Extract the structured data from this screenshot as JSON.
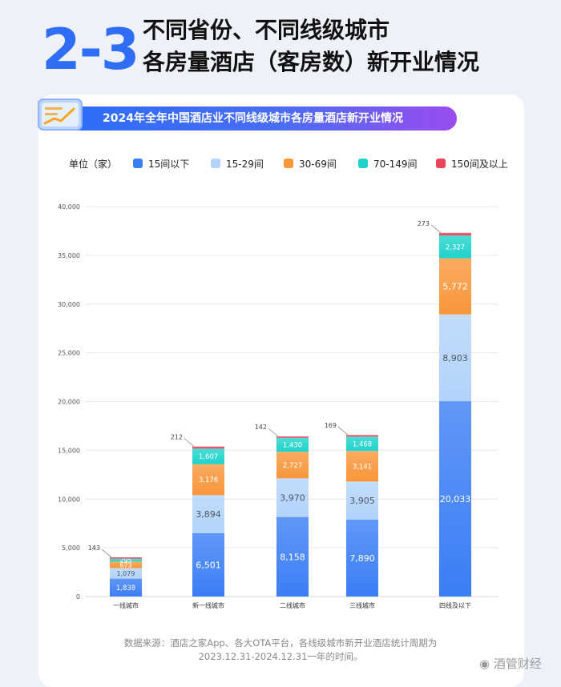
{
  "header": {
    "number": "2-3",
    "title_line1": "不同省份、不同线级城市",
    "title_line2": "各房量酒店（客房数）新开业情况"
  },
  "banner_title": "2024年全年中国酒店业不同线级城市各房量酒店新开业情况",
  "legend_unit": "单位（家）",
  "chart_data": {
    "type": "bar",
    "stacked": true,
    "title": "2024年全年中国酒店业不同线级城市各房量酒店新开业情况",
    "ylabel": "单位（家）",
    "categories": [
      "一线城市",
      "新一线城市",
      "二线城市",
      "三线城市",
      "四线及以下"
    ],
    "ylim": [
      0,
      40000
    ],
    "yticks": [
      0,
      5000,
      10000,
      15000,
      20000,
      25000,
      30000,
      35000,
      40000
    ],
    "ytick_labels": [
      "0",
      "5,000",
      "10,000",
      "15,000",
      "20,000",
      "25,000",
      "30,000",
      "35,000",
      "40,000"
    ],
    "grid": true,
    "legend_position": "top",
    "series": [
      {
        "name": "15间以下",
        "color": "#3a7ef5",
        "values": [
          1838,
          6501,
          8158,
          7890,
          20033
        ],
        "labels": [
          "1,838",
          "6,501",
          "8,158",
          "7,890",
          "20,033"
        ]
      },
      {
        "name": "15-29间",
        "color": "#b3d3fb",
        "values": [
          1079,
          3894,
          3970,
          3905,
          8903
        ],
        "labels": [
          "1,079",
          "3,894",
          "3,970",
          "3,905",
          "8,903"
        ]
      },
      {
        "name": "30-69间",
        "color": "#f8963a",
        "values": [
          673,
          3176,
          2727,
          3141,
          5772
        ],
        "labels": [
          "673",
          "3,176",
          "2,727",
          "3,141",
          "5,772"
        ]
      },
      {
        "name": "70-149间",
        "color": "#1fd3cb",
        "values": [
          295,
          1607,
          1430,
          1468,
          2327
        ],
        "labels": [
          "295",
          "1,607",
          "1,430",
          "1,468",
          "2,327"
        ]
      },
      {
        "name": "150间及以上",
        "color": "#e8445a",
        "values": [
          143,
          212,
          142,
          169,
          273
        ],
        "labels": [
          "143",
          "212",
          "142",
          "169",
          "273"
        ]
      }
    ]
  },
  "source_line1": "数据来源：酒店之家App、各大OTA平台，各线级城市新开业酒店统计周期为",
  "source_line2": "2023.12.31-2024.12.31一年的时间。",
  "watermark": "酒管财经"
}
